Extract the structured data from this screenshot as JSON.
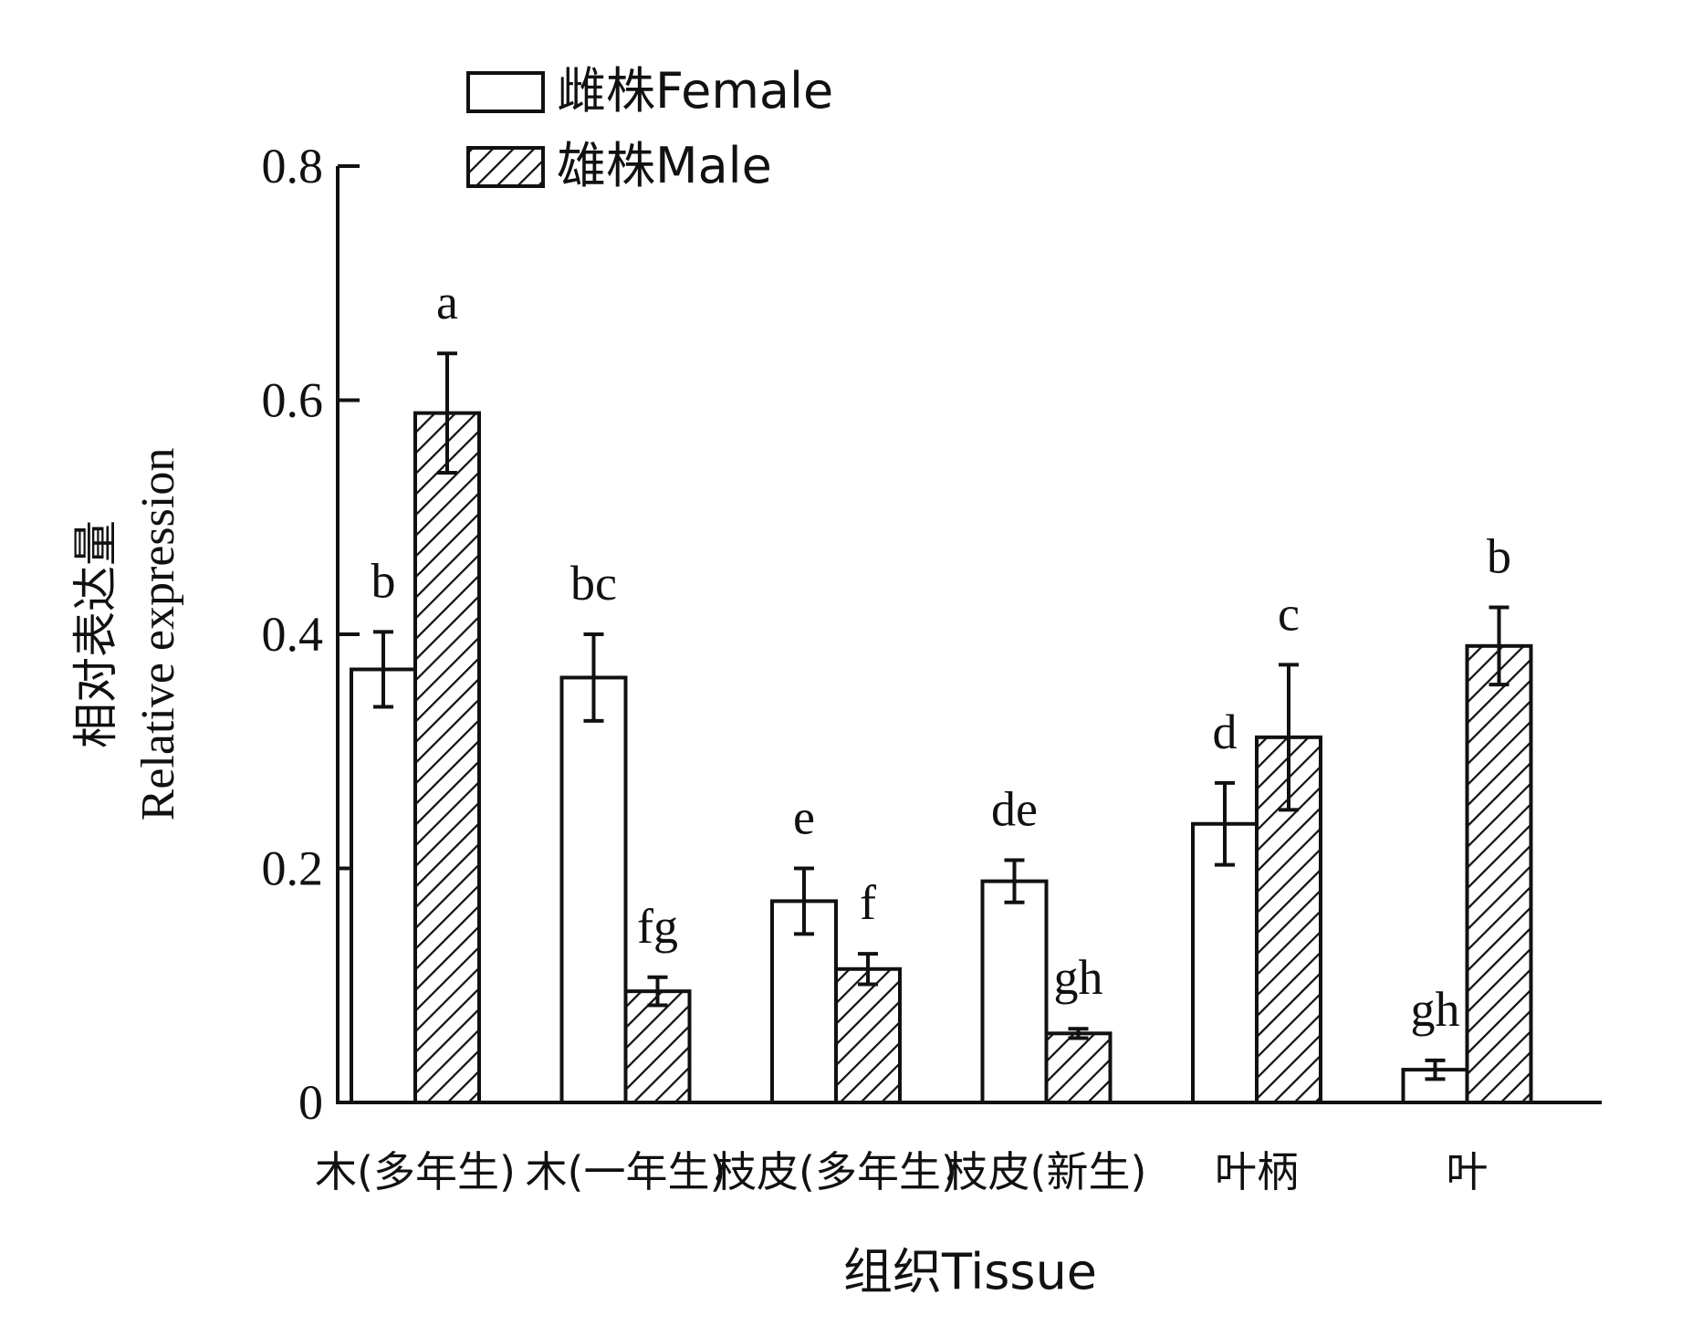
{
  "chart_data": {
    "type": "bar",
    "categories": [
      "木(多年生)",
      "木(一年生)",
      "枝皮(多年生)",
      "枝皮(新生)",
      "叶柄",
      "叶"
    ],
    "xlabel": "组织Tissue",
    "ylabel_line1": "相对表达量",
    "ylabel_line2": "Relative expression",
    "ylim": [
      0,
      0.8
    ],
    "yticks": [
      {
        "value": 0,
        "label": "0"
      },
      {
        "value": 0.2,
        "label": "0.2"
      },
      {
        "value": 0.4,
        "label": "0.4"
      },
      {
        "value": 0.6,
        "label": "0.6"
      },
      {
        "value": 0.8,
        "label": "0.8"
      }
    ],
    "legend_position": "top-left",
    "series": [
      {
        "name": "雌株Female",
        "fill": "open",
        "values": [
          0.37,
          0.363,
          0.172,
          0.189,
          0.238,
          0.028
        ],
        "errors": [
          0.032,
          0.037,
          0.028,
          0.018,
          0.035,
          0.008
        ],
        "letters": [
          "b",
          "bc",
          "e",
          "de",
          "d",
          "gh"
        ]
      },
      {
        "name": "雄株Male",
        "fill": "hatched",
        "values": [
          0.589,
          0.095,
          0.114,
          0.059,
          0.312,
          0.39
        ],
        "errors": [
          0.051,
          0.012,
          0.013,
          0.004,
          0.062,
          0.033
        ],
        "letters": [
          "a",
          "fg",
          "f",
          "gh",
          "c",
          "b"
        ]
      }
    ]
  },
  "colors": {
    "ink": "#111111",
    "background": "#ffffff"
  }
}
